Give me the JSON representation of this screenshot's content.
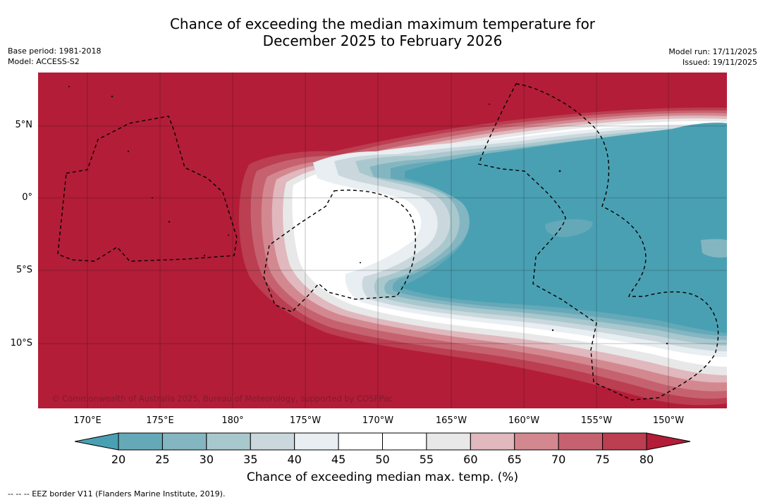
{
  "title_line1": "Chance of exceeding the median maximum temperature for",
  "title_line2": "December 2025 to February 2026",
  "meta_left": {
    "line1": "Base period: 1981-2018",
    "line2": "Model: ACCESS-S2"
  },
  "meta_right": {
    "line1": "Model run: 17/11/2025",
    "line2": "Issued: 19/11/2025"
  },
  "lon_ticks": [
    "170°E",
    "175°E",
    "180°",
    "175°W",
    "170°W",
    "165°W",
    "160°W",
    "155°W",
    "150°W"
  ],
  "lat_ticks": [
    "5°N",
    "0°",
    "5°S",
    "10°S"
  ],
  "colorbar": {
    "labels": [
      "20",
      "25",
      "30",
      "35",
      "40",
      "45",
      "50",
      "55",
      "60",
      "65",
      "70",
      "75",
      "80"
    ],
    "colors": [
      "#4aa0b3",
      "#65a9b8",
      "#84b6c2",
      "#a8c8cd",
      "#cad8de",
      "#e8eef1",
      "#ffffff",
      "#ffffff",
      "#e8e8e8",
      "#e0b8bd",
      "#d38890",
      "#c6626f",
      "#bb3e51",
      "#b31d38"
    ],
    "title": "Chance of exceeding median max. temp. (%)"
  },
  "map_colors": {
    "high": "#b31d38",
    "low": "#4aa0b3"
  },
  "copyright": "© Commonwealth of Australia 2025, Bureau of Meteorology, supported by COSPPac",
  "footnote": "--  --  -- EEZ border V11 (Flanders Marine Institute, 2019)."
}
